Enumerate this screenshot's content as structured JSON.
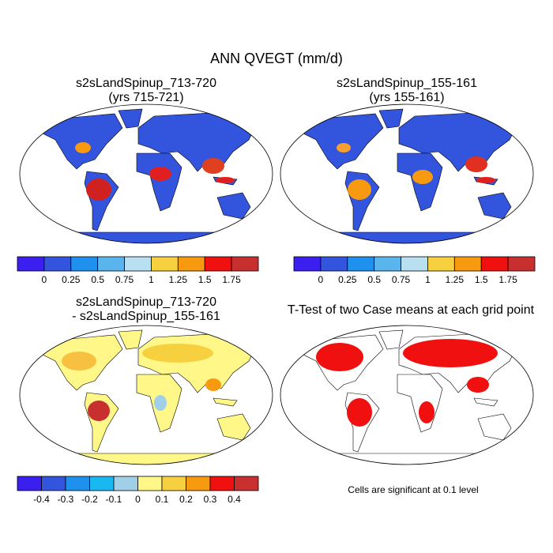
{
  "title": "ANN QVEGT (mm/d)",
  "panels": [
    {
      "title": [
        "s2sLandSpinup_713-720",
        "(yrs 715-721)"
      ],
      "colorbar": {
        "colors": [
          "#3a1ff0",
          "#3355dd",
          "#1e90ee",
          "#5ab4ee",
          "#b8e0f0",
          "#f7d040",
          "#f79a10",
          "#f01010",
          "#c83030"
        ],
        "ticks": [
          0,
          0.25,
          0.5,
          0.75,
          1,
          1.25,
          1.5,
          1.75
        ]
      }
    },
    {
      "title": [
        "s2sLandSpinup_155-161",
        "(yrs 155-161)"
      ],
      "colorbar": {
        "colors": [
          "#3a1ff0",
          "#3355dd",
          "#1e90ee",
          "#5ab4ee",
          "#b8e0f0",
          "#f7d040",
          "#f79a10",
          "#f01010",
          "#c83030"
        ],
        "ticks": [
          0,
          0.25,
          0.5,
          0.75,
          1,
          1.25,
          1.5,
          1.75
        ]
      }
    },
    {
      "title": [
        "s2sLandSpinup_713-720",
        "- s2sLandSpinup_155-161"
      ],
      "colorbar": {
        "colors": [
          "#3a1ff0",
          "#3355dd",
          "#1e90ee",
          "#1ab8f0",
          "#a0d0e8",
          "#fff888",
          "#f7d040",
          "#f79a10",
          "#f01010",
          "#c83030"
        ],
        "ticks": [
          -0.4,
          -0.3,
          -0.2,
          -0.1,
          0,
          0.1,
          0.2,
          0.3,
          0.4
        ]
      }
    },
    {
      "title": [
        "T-Test of two Case means at each grid point"
      ],
      "note": "Cells are significant at 0.1 level"
    }
  ]
}
